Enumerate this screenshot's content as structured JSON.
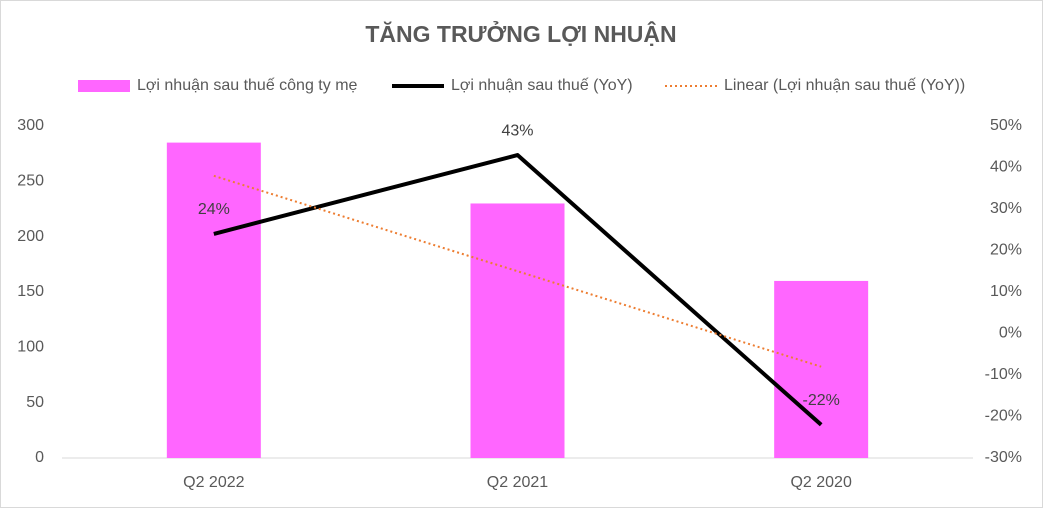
{
  "chart_data": {
    "type": "bar",
    "title": "TĂNG TRƯỞNG LỢI NHUẬN",
    "categories": [
      "Q2 2022",
      "Q2 2021",
      "Q2 2020"
    ],
    "series": [
      {
        "name": "Lợi nhuận sau thuế công ty mẹ",
        "type": "bar",
        "color": "#ff66ff",
        "values": [
          285,
          230,
          160
        ]
      },
      {
        "name": "Lợi nhuận sau thuế (YoY)",
        "type": "line",
        "color": "#000000",
        "axis": "y2",
        "values": [
          24,
          43,
          -22
        ],
        "value_labels": [
          "24%",
          "43%",
          "-22%"
        ]
      },
      {
        "name": "Linear (Lợi nhuận sau thuế (YoY))",
        "type": "line",
        "color": "#ed7d31",
        "dash": "dotted",
        "axis": "y2",
        "values": [
          38,
          15,
          -8
        ]
      }
    ],
    "ylim": [
      0,
      300
    ],
    "yticks": [
      0,
      50,
      100,
      150,
      200,
      250,
      300
    ],
    "y2lim": [
      -30,
      50
    ],
    "y2ticks": [
      {
        "value": -30,
        "label": "-30%"
      },
      {
        "value": -20,
        "label": "-20%"
      },
      {
        "value": -10,
        "label": "-10%"
      },
      {
        "value": 0,
        "label": "0%"
      },
      {
        "value": 10,
        "label": "10%"
      },
      {
        "value": 20,
        "label": "20%"
      },
      {
        "value": 30,
        "label": "30%"
      },
      {
        "value": 40,
        "label": "40%"
      },
      {
        "value": 50,
        "label": "50%"
      }
    ],
    "grid": false,
    "legend": "top"
  }
}
